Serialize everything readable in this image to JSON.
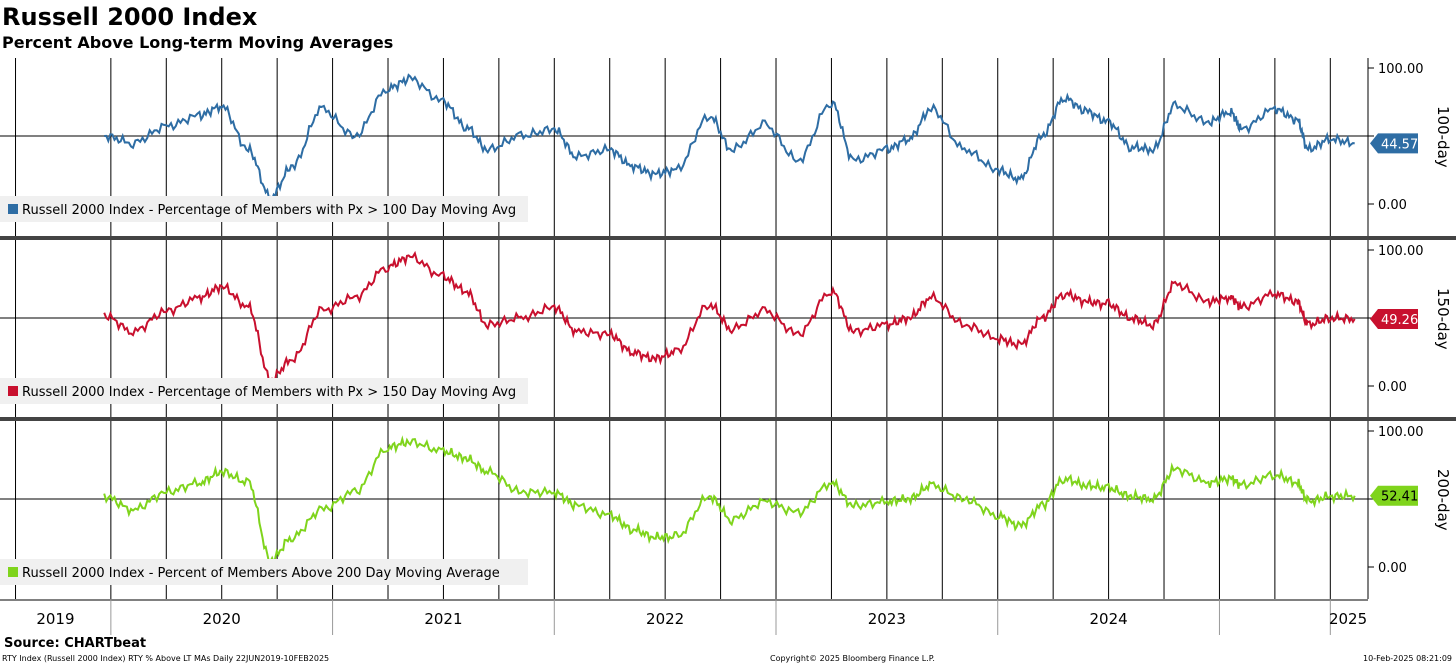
{
  "title": "Russell 2000 Index",
  "subtitle": "Percent Above Long-term Moving Averages",
  "source": "Source: CHARTbeat",
  "footer": {
    "left": "RTY Index (Russell 2000 Index) RTY % Above LT MAs  Daily 22JUN2019-10FEB2025",
    "center": "Copyright© 2025 Bloomberg Finance L.P.",
    "right": "10-Feb-2025 08:21:09"
  },
  "colors": {
    "series1": "#2e6da4",
    "series2": "#c8102e",
    "series3": "#7fd41c"
  },
  "chart_data": {
    "type": "line",
    "x_axis": {
      "labels": [
        "2019",
        "2020",
        "2021",
        "2022",
        "2023",
        "2024",
        "2025"
      ],
      "range": [
        "2019-06-22",
        "2025-02-10"
      ]
    },
    "panels": [
      {
        "series_name": "Russell 2000 Index - Percentage of Members with Px > 100 Day Moving Avg",
        "side_label": "100-day",
        "last_value": "44.57",
        "y_ticks": [
          "100.00",
          "50.00",
          "0.00"
        ],
        "ylim": [
          0,
          100
        ],
        "color": "#2e6da4",
        "x": [
          2019.47,
          2019.6,
          2019.75,
          2019.9,
          2020.0,
          2020.12,
          2020.22,
          2020.32,
          2020.45,
          2020.6,
          2020.75,
          2020.85,
          2021.0,
          2021.1,
          2021.2,
          2021.35,
          2021.5,
          2021.6,
          2021.75,
          2021.85,
          2021.95,
          2022.05,
          2022.2,
          2022.3,
          2022.45,
          2022.6,
          2022.75,
          2022.85,
          2023.0,
          2023.1,
          2023.2,
          2023.35,
          2023.5,
          2023.6,
          2023.7,
          2023.8,
          2023.9,
          2024.0,
          2024.1,
          2024.2,
          2024.3,
          2024.45,
          2024.55,
          2024.6,
          2024.75,
          2024.85,
          2024.9,
          2025.0,
          2025.11
        ],
        "y": [
          50,
          45,
          57,
          65,
          72,
          40,
          5,
          28,
          70,
          50,
          85,
          92,
          75,
          57,
          40,
          50,
          55,
          35,
          40,
          28,
          22,
          25,
          65,
          40,
          58,
          32,
          75,
          32,
          40,
          48,
          70,
          40,
          25,
          18,
          50,
          78,
          68,
          60,
          42,
          40,
          72,
          60,
          68,
          55,
          70,
          62,
          40,
          48,
          44.57
        ]
      },
      {
        "series_name": "Russell 2000 Index - Percentage of Members with Px > 150 Day Moving Avg",
        "side_label": "150-day",
        "last_value": "49.26",
        "y_ticks": [
          "100.00",
          "50.00",
          "0.00"
        ],
        "ylim": [
          0,
          100
        ],
        "color": "#c8102e",
        "x": [
          2019.47,
          2019.6,
          2019.75,
          2019.9,
          2020.0,
          2020.12,
          2020.22,
          2020.32,
          2020.45,
          2020.6,
          2020.75,
          2020.85,
          2021.0,
          2021.1,
          2021.2,
          2021.35,
          2021.5,
          2021.6,
          2021.75,
          2021.85,
          2021.95,
          2022.05,
          2022.2,
          2022.3,
          2022.45,
          2022.6,
          2022.75,
          2022.85,
          2023.0,
          2023.1,
          2023.2,
          2023.35,
          2023.5,
          2023.6,
          2023.7,
          2023.8,
          2023.9,
          2024.0,
          2024.1,
          2024.2,
          2024.3,
          2024.45,
          2024.55,
          2024.6,
          2024.75,
          2024.85,
          2024.9,
          2025.0,
          2025.11
        ],
        "y": [
          52,
          40,
          55,
          65,
          73,
          58,
          5,
          20,
          55,
          65,
          88,
          95,
          80,
          70,
          45,
          50,
          58,
          40,
          38,
          25,
          20,
          25,
          60,
          42,
          55,
          38,
          70,
          40,
          45,
          50,
          65,
          45,
          35,
          30,
          50,
          68,
          62,
          60,
          50,
          45,
          75,
          62,
          65,
          58,
          68,
          62,
          45,
          50,
          49.26
        ]
      },
      {
        "series_name": "Russell 2000 Index - Percent of Members Above 200 Day Moving Average",
        "side_label": "200-day",
        "last_value": "52.41",
        "y_ticks": [
          "100.00",
          "50.00",
          "0.00"
        ],
        "ylim": [
          0,
          100
        ],
        "color": "#7fd41c",
        "x": [
          2019.47,
          2019.6,
          2019.75,
          2019.9,
          2020.0,
          2020.12,
          2020.22,
          2020.32,
          2020.45,
          2020.6,
          2020.75,
          2020.85,
          2021.0,
          2021.1,
          2021.2,
          2021.35,
          2021.5,
          2021.6,
          2021.75,
          2021.85,
          2021.95,
          2022.05,
          2022.2,
          2022.3,
          2022.45,
          2022.6,
          2022.75,
          2022.85,
          2023.0,
          2023.1,
          2023.2,
          2023.35,
          2023.5,
          2023.6,
          2023.7,
          2023.8,
          2023.9,
          2024.0,
          2024.1,
          2024.2,
          2024.3,
          2024.45,
          2024.55,
          2024.6,
          2024.75,
          2024.85,
          2024.9,
          2025.0,
          2025.11
        ],
        "y": [
          52,
          42,
          55,
          62,
          70,
          62,
          5,
          22,
          42,
          55,
          88,
          92,
          85,
          80,
          70,
          55,
          55,
          45,
          38,
          28,
          22,
          22,
          52,
          35,
          48,
          40,
          62,
          45,
          48,
          50,
          60,
          50,
          38,
          30,
          45,
          65,
          60,
          58,
          52,
          50,
          72,
          62,
          65,
          60,
          68,
          62,
          48,
          52,
          52.41
        ]
      }
    ]
  }
}
